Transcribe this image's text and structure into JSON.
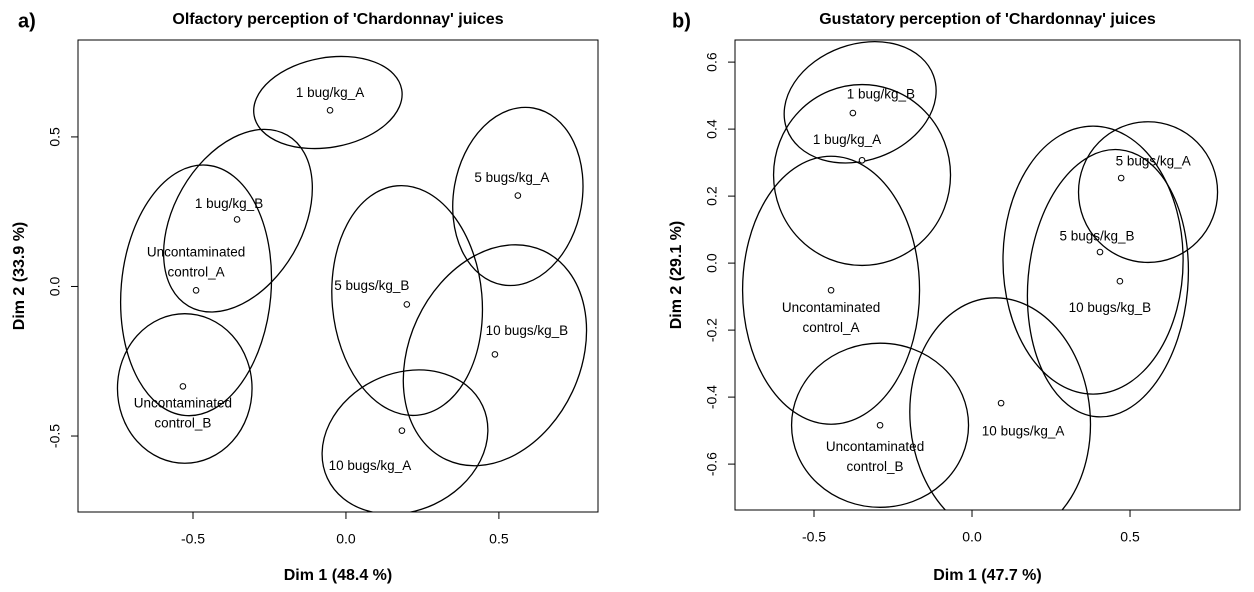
{
  "chart_data": [
    {
      "type": "scatter",
      "panel_label": "a)",
      "title": "Olfactory perception of 'Chardonnay' juices",
      "xlabel": "Dim 1 (48.4 %)",
      "ylabel": "Dim 2 (33.9 %)",
      "categories": [
        "1 bug/kg_A",
        "5 bugs/kg_A",
        "1 bug/kg_B",
        "Uncontaminated control_A",
        "5 bugs/kg_B",
        "10 bugs/kg_B",
        "Uncontaminated control_B",
        "10 bugs/kg_A"
      ],
      "x": [
        -0.052,
        0.562,
        -0.356,
        -0.49,
        0.199,
        0.487,
        -0.533,
        0.183
      ],
      "y": [
        0.589,
        0.304,
        0.224,
        -0.013,
        -0.06,
        -0.227,
        -0.334,
        -0.482
      ],
      "ellipses": [
        {
          "cx": -0.059,
          "cy": 0.615,
          "rx": 0.245,
          "ry": 0.15,
          "angle": -10
        },
        {
          "cx": 0.562,
          "cy": 0.301,
          "rx": 0.21,
          "ry": 0.3,
          "angle": 10
        },
        {
          "cx": -0.353,
          "cy": 0.22,
          "rx": 0.21,
          "ry": 0.33,
          "angle": 30
        },
        {
          "cx": -0.49,
          "cy": -0.013,
          "rx": 0.245,
          "ry": 0.42,
          "angle": 5
        },
        {
          "cx": 0.2,
          "cy": -0.047,
          "rx": 0.245,
          "ry": 0.385,
          "angle": -5
        },
        {
          "cx": 0.487,
          "cy": -0.23,
          "rx": 0.28,
          "ry": 0.385,
          "angle": 25
        },
        {
          "cx": -0.527,
          "cy": -0.341,
          "rx": 0.22,
          "ry": 0.25,
          "angle": 0
        },
        {
          "cx": 0.193,
          "cy": -0.52,
          "rx": 0.28,
          "ry": 0.23,
          "angle": -25
        }
      ],
      "xlim": [
        -0.876,
        0.824
      ],
      "ylim": [
        -0.754,
        0.824
      ],
      "xticks": [
        -0.5,
        {
          "value": 0,
          "label": "0.0"
        },
        0.5
      ],
      "yticks": [
        -0.5,
        {
          "value": 0,
          "label": "0.0"
        },
        0.5
      ]
    },
    {
      "type": "scatter",
      "panel_label": "b)",
      "title": "Gustatory perception of 'Chardonnay' juices",
      "xlabel": "Dim 1 (47.7 %)",
      "ylabel": "Dim 2 (29.1 %)",
      "categories": [
        "1 bug/kg_B",
        "1 bug/kg_A",
        "5 bugs/kg_A",
        "5 bugs/kg_B",
        "10 bugs/kg_B",
        "Uncontaminated control_A",
        "10 bugs/kg_A",
        "Uncontaminated control_B"
      ],
      "x": [
        -0.377,
        -0.348,
        0.472,
        0.405,
        0.468,
        -0.446,
        0.092,
        -0.291
      ],
      "y": [
        0.448,
        0.307,
        0.254,
        0.033,
        -0.054,
        -0.081,
        -0.418,
        -0.484
      ],
      "ellipses": [
        {
          "cx": -0.354,
          "cy": 0.48,
          "rx": 0.247,
          "ry": 0.173,
          "angle": -20
        },
        {
          "cx": -0.348,
          "cy": 0.263,
          "rx": 0.28,
          "ry": 0.27,
          "angle": 0
        },
        {
          "cx": 0.557,
          "cy": 0.212,
          "rx": 0.22,
          "ry": 0.21,
          "angle": 0
        },
        {
          "cx": 0.383,
          "cy": 0.009,
          "rx": 0.285,
          "ry": 0.4,
          "angle": 0
        },
        {
          "cx": 0.43,
          "cy": -0.06,
          "rx": 0.253,
          "ry": 0.4,
          "angle": 5
        },
        {
          "cx": -0.446,
          "cy": -0.081,
          "rx": 0.28,
          "ry": 0.4,
          "angle": 0
        },
        {
          "cx": 0.089,
          "cy": -0.463,
          "rx": 0.285,
          "ry": 0.36,
          "angle": -5
        },
        {
          "cx": -0.291,
          "cy": -0.484,
          "rx": 0.28,
          "ry": 0.245,
          "angle": 0
        }
      ],
      "xlim": [
        -0.75,
        0.848
      ],
      "ylim": [
        -0.737,
        0.666
      ],
      "xticks": [
        -0.5,
        {
          "value": 0,
          "label": "0.0"
        },
        0.5
      ],
      "yticks": [
        -0.6,
        -0.4,
        -0.2,
        {
          "value": 0,
          "label": "0.0"
        },
        0.2,
        0.4,
        0.6
      ]
    }
  ]
}
